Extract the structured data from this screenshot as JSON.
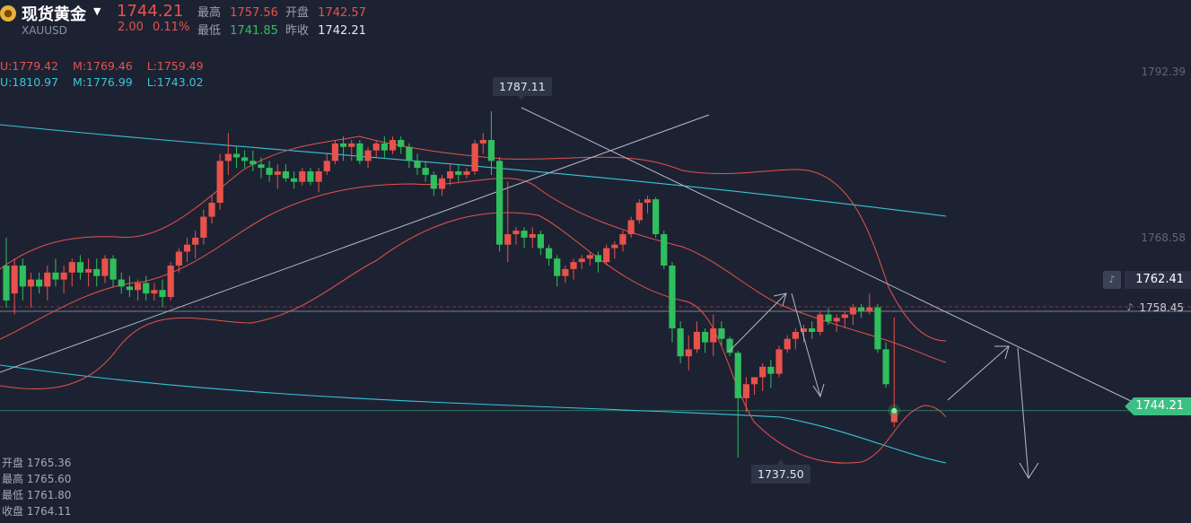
{
  "header": {
    "name": "现货黄金",
    "symbol": "XAUUSD",
    "price": "1744.21",
    "change": "2.00",
    "change_pct": "0.11%",
    "high_label": "最高",
    "high": "1757.56",
    "open_label": "开盘",
    "open": "1742.57",
    "low_label": "最低",
    "low": "1741.85",
    "prev_label": "昨收",
    "prev": "1742.21"
  },
  "indicators": {
    "boll": {
      "u": "U:1779.42",
      "m": "M:1769.46",
      "l": "L:1759.49"
    },
    "ma": {
      "u": "U:1810.97",
      "m": "M:1776.99",
      "l": "L:1743.02"
    }
  },
  "ohlc_panel": {
    "open": "开盘 1765.36",
    "high": "最高 1765.60",
    "low": "最低 1761.80",
    "close": "收盘 1764.11"
  },
  "y_axis": {
    "tick_top": "1792.39",
    "tick_mid": "1768.58"
  },
  "price_tags": {
    "current": "1744.21",
    "alert1": "1762.41",
    "alert2": "1758.45"
  },
  "annotations": {
    "peak": "1787.11",
    "trough": "1737.50"
  },
  "colors": {
    "up": "#e8524a",
    "down": "#2fbf5c",
    "boll": "#e8524a",
    "ma": "#35c6d8",
    "background": "#1d2233"
  },
  "chart_data": {
    "type": "candlestick",
    "title": "现货黄金",
    "ylim": [
      1728,
      1800
    ],
    "candles": [
      [
        1765.0,
        1769.0,
        1759.0,
        1760.0
      ],
      [
        1761.0,
        1766.0,
        1758.0,
        1765.0
      ],
      [
        1765.0,
        1766.0,
        1760.0,
        1762.0
      ],
      [
        1762.0,
        1764.0,
        1759.0,
        1763.0
      ],
      [
        1763.0,
        1764.0,
        1761.0,
        1762.0
      ],
      [
        1762.0,
        1765.0,
        1760.0,
        1764.0
      ],
      [
        1764.0,
        1766.0,
        1762.0,
        1763.0
      ],
      [
        1763.0,
        1765.0,
        1761.0,
        1764.0
      ],
      [
        1764.0,
        1766.0,
        1762.0,
        1765.5
      ],
      [
        1765.5,
        1766.5,
        1763.0,
        1764.0
      ],
      [
        1764.0,
        1766.0,
        1762.0,
        1764.5
      ],
      [
        1764.5,
        1766.0,
        1762.0,
        1763.5
      ],
      [
        1763.5,
        1766.5,
        1762.5,
        1766.0
      ],
      [
        1766.0,
        1766.5,
        1762.0,
        1763.0
      ],
      [
        1763.0,
        1764.0,
        1761.0,
        1762.0
      ],
      [
        1762.0,
        1763.5,
        1760.5,
        1761.5
      ],
      [
        1761.5,
        1763.0,
        1760.0,
        1762.5
      ],
      [
        1762.5,
        1763.5,
        1760.0,
        1761.0
      ],
      [
        1761.0,
        1762.5,
        1760.0,
        1761.5
      ],
      [
        1761.5,
        1763.0,
        1759.0,
        1760.5
      ],
      [
        1760.5,
        1765.5,
        1760.0,
        1765.0
      ],
      [
        1765.0,
        1767.5,
        1764.0,
        1767.0
      ],
      [
        1767.0,
        1769.0,
        1765.5,
        1768.0
      ],
      [
        1768.0,
        1770.0,
        1766.0,
        1769.0
      ],
      [
        1769.0,
        1773.0,
        1768.0,
        1772.0
      ],
      [
        1772.0,
        1775.0,
        1771.0,
        1774.0
      ],
      [
        1774.0,
        1781.0,
        1773.0,
        1780.0
      ],
      [
        1780.0,
        1784.0,
        1778.0,
        1781.0
      ],
      [
        1781.0,
        1782.0,
        1779.0,
        1780.5
      ],
      [
        1780.5,
        1781.5,
        1779.0,
        1780.0
      ],
      [
        1780.0,
        1781.5,
        1778.5,
        1779.5
      ],
      [
        1779.5,
        1780.5,
        1777.5,
        1779.0
      ],
      [
        1779.0,
        1780.0,
        1777.0,
        1778.0
      ],
      [
        1778.0,
        1779.5,
        1776.0,
        1778.5
      ],
      [
        1778.5,
        1779.5,
        1777.0,
        1777.5
      ],
      [
        1777.5,
        1778.5,
        1776.0,
        1777.0
      ],
      [
        1777.0,
        1779.0,
        1776.5,
        1778.5
      ],
      [
        1778.5,
        1779.0,
        1776.5,
        1777.0
      ],
      [
        1777.0,
        1779.0,
        1775.5,
        1778.5
      ],
      [
        1778.5,
        1781.0,
        1778.0,
        1780.0
      ],
      [
        1780.0,
        1783.0,
        1779.5,
        1782.5
      ],
      [
        1782.5,
        1783.5,
        1780.0,
        1782.0
      ],
      [
        1782.0,
        1783.0,
        1780.0,
        1782.5
      ],
      [
        1782.5,
        1783.0,
        1779.5,
        1780.0
      ],
      [
        1780.0,
        1782.0,
        1779.0,
        1781.5
      ],
      [
        1781.5,
        1783.0,
        1780.5,
        1782.5
      ],
      [
        1782.5,
        1783.5,
        1780.5,
        1781.5
      ],
      [
        1781.5,
        1783.5,
        1781.0,
        1783.0
      ],
      [
        1783.0,
        1783.5,
        1781.0,
        1782.0
      ],
      [
        1782.0,
        1782.5,
        1779.0,
        1780.0
      ],
      [
        1780.0,
        1781.0,
        1778.0,
        1779.0
      ],
      [
        1779.0,
        1780.0,
        1777.0,
        1778.0
      ],
      [
        1778.0,
        1778.5,
        1775.0,
        1776.0
      ],
      [
        1776.0,
        1778.0,
        1775.0,
        1777.5
      ],
      [
        1777.5,
        1779.5,
        1776.5,
        1778.5
      ],
      [
        1778.5,
        1779.5,
        1777.0,
        1778.0
      ],
      [
        1778.0,
        1779.0,
        1777.5,
        1778.5
      ],
      [
        1778.5,
        1783.0,
        1778.0,
        1782.5
      ],
      [
        1782.5,
        1784.0,
        1781.0,
        1783.0
      ],
      [
        1783.0,
        1787.11,
        1778.0,
        1780.0
      ],
      [
        1780.0,
        1780.5,
        1767.0,
        1768.0
      ],
      [
        1768.0,
        1777.0,
        1765.5,
        1769.5
      ],
      [
        1769.5,
        1770.5,
        1768.0,
        1770.0
      ],
      [
        1770.0,
        1770.5,
        1767.5,
        1769.0
      ],
      [
        1769.0,
        1770.5,
        1767.5,
        1769.5
      ],
      [
        1769.5,
        1770.0,
        1766.5,
        1767.5
      ],
      [
        1767.5,
        1768.0,
        1765.0,
        1766.0
      ],
      [
        1766.0,
        1766.5,
        1762.0,
        1763.5
      ],
      [
        1763.5,
        1765.0,
        1762.5,
        1764.5
      ],
      [
        1764.5,
        1766.0,
        1763.0,
        1765.5
      ],
      [
        1765.5,
        1766.5,
        1764.5,
        1766.0
      ],
      [
        1766.0,
        1767.0,
        1765.0,
        1766.5
      ],
      [
        1766.5,
        1767.0,
        1764.0,
        1765.5
      ],
      [
        1765.5,
        1768.0,
        1765.0,
        1767.5
      ],
      [
        1767.5,
        1768.5,
        1766.0,
        1768.0
      ],
      [
        1768.0,
        1770.0,
        1767.0,
        1769.5
      ],
      [
        1769.5,
        1772.0,
        1769.0,
        1771.5
      ],
      [
        1771.5,
        1774.5,
        1771.0,
        1774.0
      ],
      [
        1774.0,
        1775.0,
        1772.5,
        1774.5
      ],
      [
        1774.5,
        1774.8,
        1769.0,
        1769.5
      ],
      [
        1769.5,
        1770.0,
        1764.5,
        1765.0
      ],
      [
        1765.0,
        1765.5,
        1754.0,
        1756.0
      ],
      [
        1756.0,
        1757.0,
        1751.0,
        1752.0
      ],
      [
        1752.0,
        1755.0,
        1750.0,
        1753.0
      ],
      [
        1753.0,
        1757.0,
        1752.5,
        1755.5
      ],
      [
        1755.5,
        1756.0,
        1752.5,
        1754.0
      ],
      [
        1754.0,
        1758.0,
        1752.0,
        1756.0
      ],
      [
        1756.0,
        1757.0,
        1753.5,
        1754.5
      ],
      [
        1754.5,
        1754.8,
        1752.0,
        1752.5
      ],
      [
        1752.5,
        1752.8,
        1737.5,
        1746.0
      ],
      [
        1746.0,
        1749.0,
        1744.0,
        1748.0
      ],
      [
        1748.0,
        1749.0,
        1746.5,
        1749.0
      ],
      [
        1749.0,
        1751.0,
        1747.0,
        1750.5
      ],
      [
        1750.5,
        1751.5,
        1747.5,
        1749.5
      ],
      [
        1749.5,
        1753.5,
        1749.0,
        1753.0
      ],
      [
        1753.0,
        1755.0,
        1752.5,
        1754.5
      ],
      [
        1754.5,
        1756.0,
        1753.0,
        1755.5
      ],
      [
        1755.5,
        1756.5,
        1754.0,
        1756.0
      ],
      [
        1756.0,
        1757.0,
        1754.5,
        1755.5
      ],
      [
        1755.5,
        1758.5,
        1755.0,
        1758.0
      ],
      [
        1758.0,
        1759.0,
        1756.5,
        1757.0
      ],
      [
        1757.0,
        1758.0,
        1755.5,
        1757.5
      ],
      [
        1757.5,
        1758.5,
        1756.0,
        1758.0
      ],
      [
        1758.0,
        1759.5,
        1756.5,
        1759.0
      ],
      [
        1759.0,
        1759.5,
        1757.5,
        1758.5
      ],
      [
        1758.5,
        1761.0,
        1758.0,
        1759.0
      ],
      [
        1759.0,
        1759.5,
        1752.5,
        1753.0
      ],
      [
        1753.0,
        1754.0,
        1747.5,
        1748.0
      ],
      [
        1742.57,
        1757.56,
        1741.85,
        1744.21
      ]
    ],
    "boll": {
      "upper": "1779.42",
      "mid": "1769.46",
      "lower": "1759.49"
    },
    "ma": {
      "upper": "1810.97",
      "mid": "1776.99",
      "lower": "1743.02"
    }
  }
}
